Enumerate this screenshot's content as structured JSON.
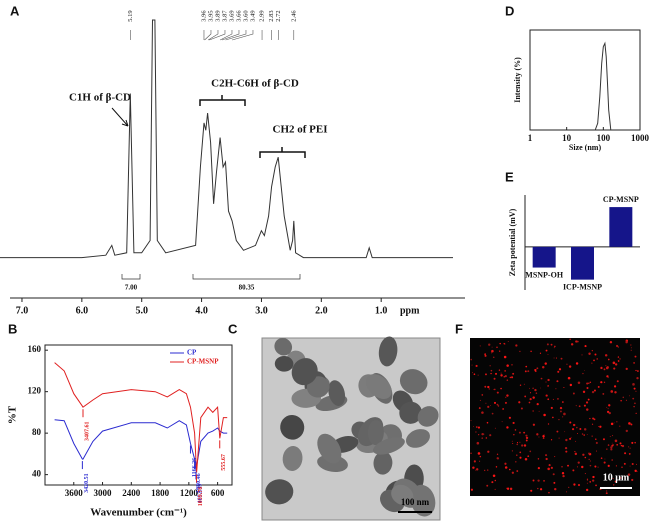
{
  "chart_data": [
    {
      "type": "line",
      "panel": "A",
      "xlabel": "ppm",
      "x": [
        7.5,
        6.0,
        5.6,
        5.5,
        5.45,
        5.25,
        5.19,
        5.13,
        5.0,
        4.86,
        4.82,
        4.8,
        4.78,
        4.74,
        4.6,
        4.1,
        4.02,
        3.96,
        3.93,
        3.9,
        3.85,
        3.8,
        3.75,
        3.69,
        3.64,
        3.6,
        3.55,
        3.49,
        3.42,
        3.3,
        3.1,
        3.0,
        2.95,
        2.88,
        2.83,
        2.77,
        2.72,
        2.62,
        2.52,
        2.48,
        2.46,
        2.43,
        2.3,
        1.6,
        1.25,
        1.2,
        1.15,
        0.8,
        -0.2
      ],
      "values": [
        3,
        3,
        4,
        8,
        4,
        5,
        70,
        5,
        5,
        10,
        100,
        100,
        100,
        10,
        5,
        8,
        40,
        58,
        55,
        62,
        50,
        25,
        38,
        52,
        40,
        42,
        22,
        18,
        10,
        6,
        8,
        14,
        12,
        20,
        32,
        40,
        44,
        20,
        6,
        10,
        18,
        5,
        3,
        3,
        3,
        7,
        3,
        3,
        3
      ],
      "color": "#333333",
      "xlim": [
        7.2,
        -0.4
      ],
      "ylim": [
        0,
        100
      ],
      "xticks": [
        {
          "value": 7,
          "label": "7.0"
        },
        {
          "value": 6,
          "label": "6.0"
        },
        {
          "value": 5,
          "label": "5.0"
        },
        {
          "value": 4,
          "label": "4.0"
        },
        {
          "value": 3,
          "label": "3.0"
        },
        {
          "value": 2,
          "label": "2.0"
        },
        {
          "value": 1,
          "label": "1.0"
        }
      ],
      "peak_labels": [
        5.19,
        3.96,
        3.95,
        3.89,
        3.87,
        3.69,
        3.66,
        {
          "value": 3.6,
          "label": "3.60"
        },
        3.49,
        2.99,
        2.83,
        2.72,
        2.46
      ],
      "integrals": [
        {
          "value": 7,
          "label": "7.00"
        },
        80.35
      ],
      "annotations": [
        "C1H of β-CD",
        "C2H-C6H of β-CD",
        "CH2 of PEI"
      ]
    },
    {
      "type": "line",
      "panel": "B",
      "xlabel": "Wavenumber (cm⁻¹)",
      "ylabel": "%T",
      "x": [
        4000,
        3800,
        3600,
        3420,
        3407,
        3200,
        3000,
        2400,
        1900,
        1650,
        1400,
        1250,
        1166,
        1080,
        1052,
        1039,
        950,
        800,
        700,
        600,
        555,
        480,
        400
      ],
      "series": [
        {
          "name": "CP",
          "color": "#2b2bd0",
          "values": [
            93,
            92,
            70,
            55,
            55,
            72,
            82,
            90,
            90,
            85,
            92,
            88,
            70,
            55,
            45,
            48,
            72,
            80,
            82,
            85,
            82,
            80,
            80
          ]
        },
        {
          "name": "CP-MSNP",
          "color": "#e02020",
          "values": [
            148,
            140,
            118,
            106,
            105,
            112,
            118,
            122,
            120,
            115,
            122,
            118,
            105,
            80,
            55,
            42,
            95,
            105,
            100,
            105,
            75,
            95,
            95
          ]
        }
      ],
      "xlim": [
        4200,
        300
      ],
      "ylim": [
        30,
        165
      ],
      "xticks": [
        3600,
        3000,
        2400,
        1800,
        1200,
        600
      ],
      "yticks": [
        40,
        80,
        120,
        160
      ],
      "legend": "upper right",
      "peak_labels": [
        {
          "value": 3420.51,
          "series": 0
        },
        {
          "value": 3407.61,
          "series": 1
        },
        {
          "value": 1166.26,
          "series": 0
        },
        {
          "value": 1080.46,
          "series": 0
        },
        {
          "value": 1052.09,
          "series": 0
        },
        {
          "value": 1039.76,
          "series": 1
        },
        {
          "value": 555.67,
          "series": 1
        }
      ]
    },
    {
      "type": "line",
      "panel": "D",
      "xlabel": "Size (nm)",
      "ylabel": "Intensity (%)",
      "x": [
        60,
        70,
        80,
        90,
        100,
        110,
        120,
        130,
        140,
        160
      ],
      "values": [
        0,
        2,
        10,
        20,
        25,
        26,
        22,
        14,
        6,
        0
      ],
      "color": "#333333",
      "xlim": [
        1,
        1000
      ],
      "ylim": [
        0,
        30
      ],
      "xscale": "log",
      "xticks": [
        1,
        10,
        100,
        1000
      ]
    },
    {
      "type": "bar",
      "panel": "E",
      "ylabel": "Zeta potential (mV)",
      "categories": [
        "MSNP-OH",
        "ICP-MSNP",
        "CP-MSNP"
      ],
      "values": [
        -24,
        -38,
        46
      ],
      "color": "#15158a",
      "ylim": [
        -50,
        60
      ]
    }
  ],
  "images": [
    {
      "panel": "C",
      "scale_bar": "100 nm"
    },
    {
      "panel": "F",
      "scale_bar": "10 μm"
    }
  ]
}
